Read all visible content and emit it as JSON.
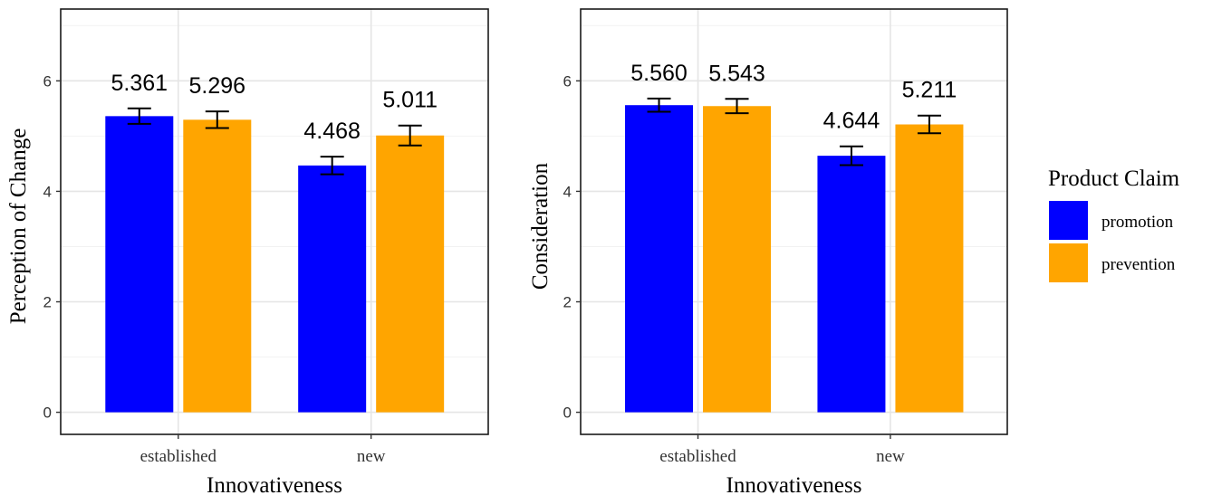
{
  "colors": {
    "promotion": "#0000FF",
    "prevention": "#FFA500",
    "grid": "#E5E5E5",
    "panel_border": "#1a1a1a",
    "text": "#000000",
    "tick_text": "#333333"
  },
  "legend": {
    "title": "Product Claim",
    "placement": "right",
    "items": [
      {
        "label": "promotion",
        "color": "#0000FF"
      },
      {
        "label": "prevention",
        "color": "#FFA500"
      }
    ]
  },
  "chart_data": [
    {
      "type": "bar",
      "title": "",
      "xlabel": "Innovativeness",
      "ylabel": "Perception of Change",
      "categories": [
        "established",
        "new"
      ],
      "ylim": [
        -0.4,
        7.3
      ],
      "yticks": [
        0,
        2,
        4,
        6
      ],
      "grid": true,
      "series": [
        {
          "name": "promotion",
          "values": [
            5.361,
            4.468
          ],
          "errors": [
            0.14,
            0.16
          ],
          "labels": [
            "5.361",
            "4.468"
          ]
        },
        {
          "name": "prevention",
          "values": [
            5.296,
            5.011
          ],
          "errors": [
            0.15,
            0.18
          ],
          "labels": [
            "5.296",
            "5.011"
          ]
        }
      ]
    },
    {
      "type": "bar",
      "title": "",
      "xlabel": "Innovativeness",
      "ylabel": "Consideration",
      "categories": [
        "established",
        "new"
      ],
      "ylim": [
        -0.4,
        7.3
      ],
      "yticks": [
        0,
        2,
        4,
        6
      ],
      "grid": true,
      "series": [
        {
          "name": "promotion",
          "values": [
            5.56,
            4.644
          ],
          "errors": [
            0.12,
            0.17
          ],
          "labels": [
            "5.560",
            "4.644"
          ]
        },
        {
          "name": "prevention",
          "values": [
            5.543,
            5.211
          ],
          "errors": [
            0.13,
            0.16
          ],
          "labels": [
            "5.543",
            "5.211"
          ]
        }
      ]
    }
  ]
}
